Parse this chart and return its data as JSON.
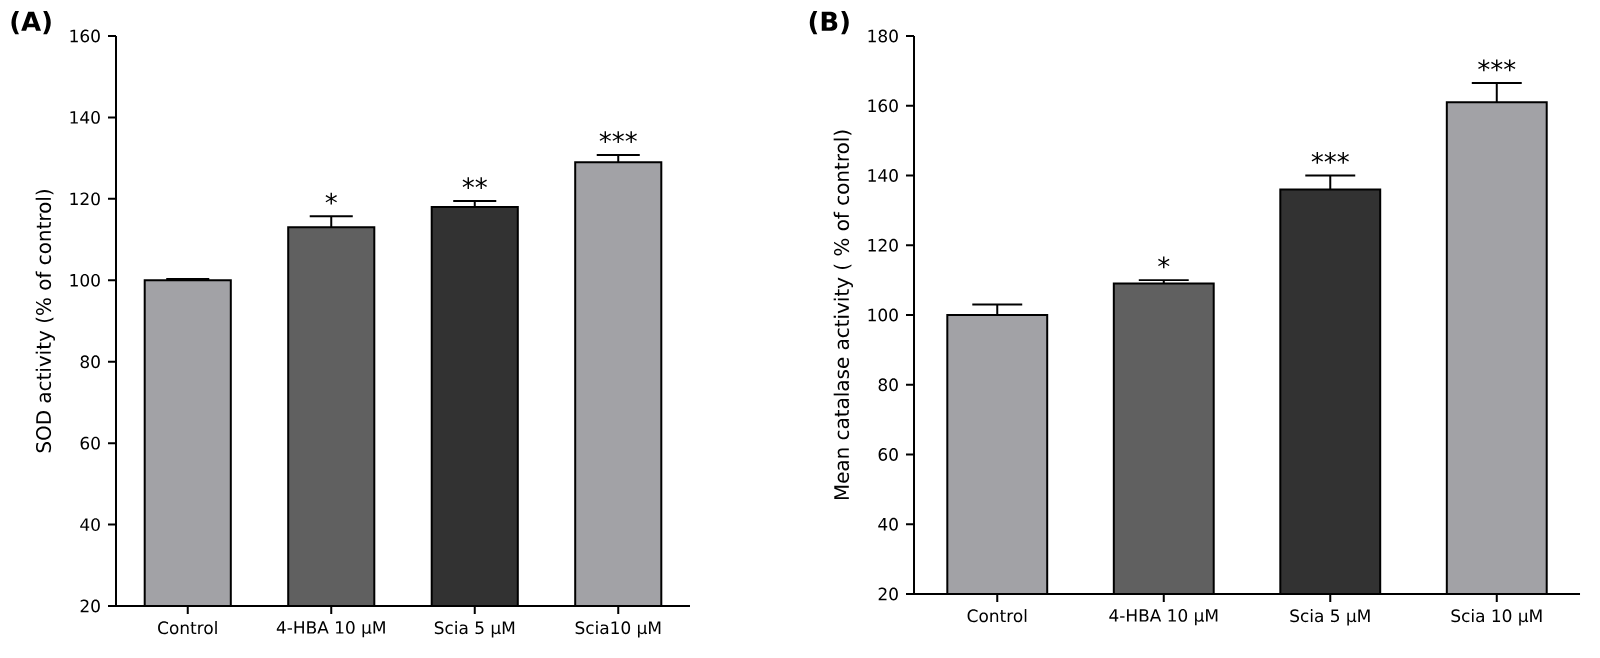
{
  "chart_data": [
    {
      "type": "bar",
      "title": "(A)",
      "ylabel": "SOD activity (% of control)",
      "categories": [
        "Control",
        "4-HBA 10 μM",
        "Scia 5 μM",
        "Scia10 μM"
      ],
      "values": [
        100,
        113,
        118,
        129
      ],
      "errors": [
        0.3,
        2.7,
        1.5,
        1.8
      ],
      "colors": [
        "#a2a2a6",
        "#606060",
        "#323232",
        "#a2a2a6"
      ],
      "ylim": [
        20,
        160
      ],
      "yticks": [
        20,
        40,
        60,
        80,
        100,
        120,
        140,
        160
      ],
      "annotations": [
        {
          "text": "*",
          "x": "4-HBA 10 μM",
          "y": 113
        },
        {
          "text": "**",
          "x": "Scia 5 μM",
          "y": 118
        },
        {
          "text": "***",
          "x": "Scia10 μM",
          "y": 129
        }
      ]
    },
    {
      "type": "bar",
      "title": "(B)",
      "ylabel": "Mean catalase activity ( % of control)",
      "categories": [
        "Control",
        "4-HBA 10 μM",
        "Scia 5 μM",
        "Scia 10 μM"
      ],
      "values": [
        100,
        109,
        136,
        161
      ],
      "errors": [
        3,
        1,
        4,
        5.5
      ],
      "colors": [
        "#a2a2a6",
        "#606060",
        "#323232",
        "#a2a2a6"
      ],
      "ylim": [
        20,
        180
      ],
      "yticks": [
        20,
        40,
        60,
        80,
        100,
        120,
        140,
        160,
        180
      ],
      "annotations": [
        {
          "text": "*",
          "x": "4-HBA 10 μM",
          "y": 109
        },
        {
          "text": "***",
          "x": "Scia 5 μM",
          "y": 136
        },
        {
          "text": "***",
          "x": "Scia 10 μM",
          "y": 161
        }
      ]
    }
  ]
}
